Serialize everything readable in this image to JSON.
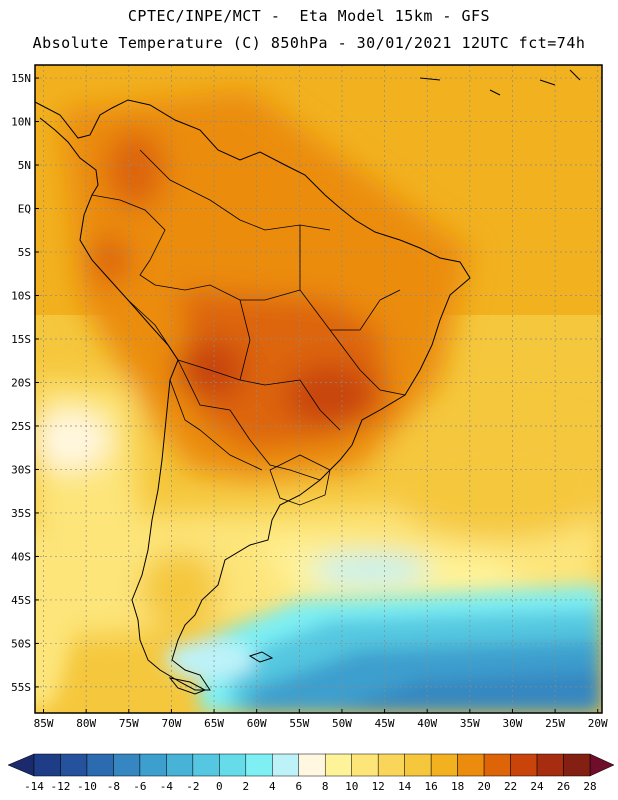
{
  "header": {
    "line1": "CPTEC/INPE/MCT -  Eta Model 15km - GFS",
    "line2": "Absolute Temperature (C) 850hPa - 30/01/2021 12UTC fct=74h"
  },
  "map": {
    "lat_labels": [
      "15N",
      "10N",
      "5N",
      "EQ",
      "5S",
      "10S",
      "15S",
      "20S",
      "25S",
      "30S",
      "35S",
      "40S",
      "45S",
      "50S",
      "55S"
    ],
    "lat_values": [
      15,
      10,
      5,
      0,
      -5,
      -10,
      -15,
      -20,
      -25,
      -30,
      -35,
      -40,
      -45,
      -50,
      -55
    ],
    "lon_labels": [
      "85W",
      "80W",
      "75W",
      "70W",
      "65W",
      "60W",
      "55W",
      "50W",
      "45W",
      "40W",
      "35W",
      "30W",
      "25W",
      "20W"
    ],
    "lon_values": [
      -85,
      -80,
      -75,
      -70,
      -65,
      -60,
      -55,
      -50,
      -45,
      -40,
      -35,
      -30,
      -25,
      -20
    ],
    "lat_range": [
      -58,
      16.5
    ],
    "lon_range": [
      -86,
      -19.5
    ]
  },
  "colorbar": {
    "labels": [
      "-14",
      "-12",
      "-10",
      "-8",
      "-6",
      "-4",
      "-2",
      "0",
      "2",
      "4",
      "6",
      "8",
      "10",
      "12",
      "14",
      "16",
      "18",
      "20",
      "22",
      "24",
      "26",
      "28"
    ],
    "colors": [
      "#1f3c87",
      "#26519c",
      "#2d6bb0",
      "#3687c1",
      "#3d9fce",
      "#46b3d7",
      "#55c7e0",
      "#66dbe9",
      "#7ef0f4",
      "#bdf2f9",
      "#fff7e0",
      "#fff39a",
      "#fde57a",
      "#f9d65a",
      "#f5c73c",
      "#f2b11f",
      "#eb8c0f",
      "#dd6508",
      "#c8440a",
      "#a62d0f",
      "#842013"
    ],
    "arrow_left_color": "#1a2a6c",
    "arrow_right_color": "#6e0e2a"
  }
}
